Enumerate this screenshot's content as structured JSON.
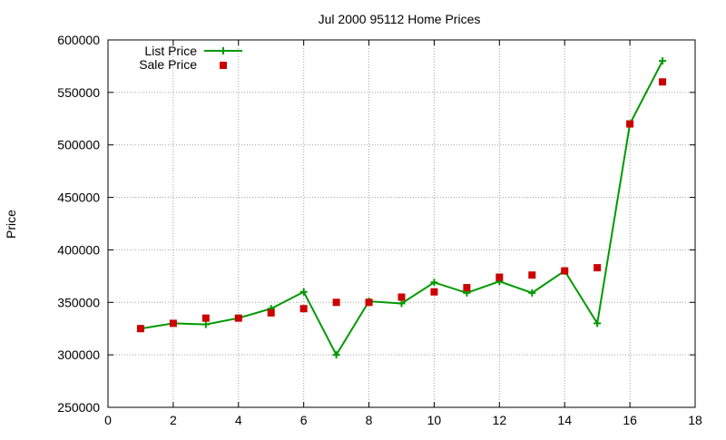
{
  "chart_data": {
    "type": "line",
    "title": "Jul 2000 95112 Home Prices",
    "xlabel": "",
    "ylabel": "Price",
    "xlim": [
      0,
      18
    ],
    "ylim": [
      250000,
      600000
    ],
    "x_ticks": [
      0,
      2,
      4,
      6,
      8,
      10,
      12,
      14,
      16,
      18
    ],
    "y_ticks": [
      250000,
      300000,
      350000,
      400000,
      450000,
      500000,
      550000,
      600000
    ],
    "grid": true,
    "legend_position": "top-left",
    "series": [
      {
        "name": "List Price",
        "style": "line-with-plus-markers",
        "color": "#009900",
        "x": [
          1,
          2,
          3,
          4,
          5,
          6,
          7,
          8,
          9,
          10,
          11,
          12,
          13,
          14,
          15,
          16,
          17
        ],
        "values": [
          325000,
          330000,
          329000,
          335000,
          344000,
          360000,
          300000,
          351000,
          349000,
          369000,
          359000,
          370000,
          359000,
          380000,
          330000,
          520000,
          580000
        ]
      },
      {
        "name": "Sale Price",
        "style": "square-markers",
        "color": "#cc0000",
        "x": [
          1,
          2,
          3,
          4,
          5,
          6,
          7,
          8,
          9,
          10,
          11,
          12,
          13,
          14,
          15,
          16,
          17
        ],
        "values": [
          325000,
          330000,
          335000,
          335000,
          340000,
          344000,
          350000,
          350000,
          355000,
          360000,
          364000,
          374000,
          376000,
          380000,
          383000,
          520000,
          560000
        ]
      }
    ]
  }
}
